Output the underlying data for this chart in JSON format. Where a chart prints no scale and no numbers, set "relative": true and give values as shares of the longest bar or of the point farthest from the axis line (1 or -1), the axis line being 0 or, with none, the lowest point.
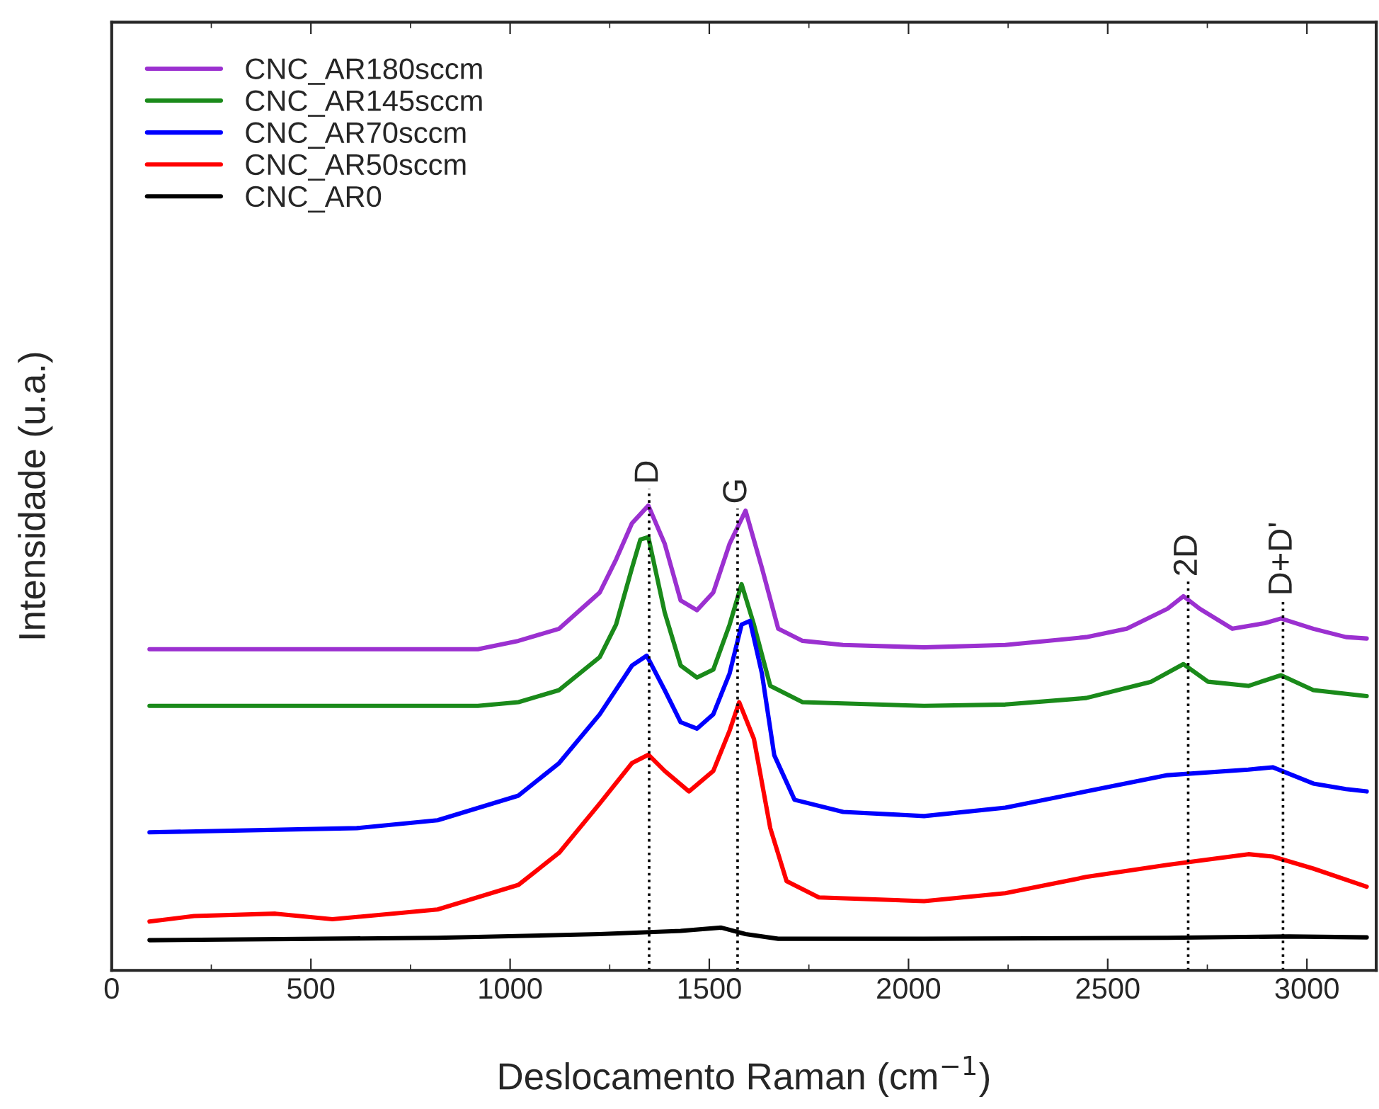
{
  "chart_data": {
    "type": "line",
    "relative": true,
    "xlabel": "Deslocamento Raman (cm$^{−1}$)",
    "ylabel": "Intensidade (u.a.)",
    "xlim": [
      0,
      3174
    ],
    "xticks": [
      0,
      500,
      1000,
      1500,
      2000,
      2500,
      3000
    ],
    "legend": "top left",
    "grid": false,
    "marker": "none",
    "line_style": "solid",
    "ref_lines": [
      {
        "axis": "x",
        "value": 1349,
        "label": "D",
        "line_style": "dotted",
        "color": "#000000"
      },
      {
        "axis": "x",
        "value": 1571,
        "label": "G",
        "line_style": "dotted",
        "color": "#000000"
      },
      {
        "axis": "x",
        "value": 2702,
        "label": "2D",
        "line_style": "dotted",
        "color": "#000000"
      },
      {
        "axis": "x",
        "value": 2940,
        "label": "D+D'",
        "line_style": "dotted",
        "color": "#000000"
      }
    ],
    "series": [
      {
        "name": "CNC_AR180sccm",
        "color": "#9b30d0",
        "x": [
          95,
          919,
          1021,
          1123,
          1225,
          1266,
          1306,
          1347,
          1388,
          1428,
          1469,
          1510,
          1551,
          1591,
          1632,
          1673,
          1734,
          1836,
          2039,
          2243,
          2446,
          2548,
          2650,
          2690,
          2731,
          2813,
          2894,
          2935,
          3016,
          3098,
          3150
        ],
        "values": [
          0.691,
          0.691,
          0.709,
          0.735,
          0.813,
          0.884,
          0.962,
          1.0,
          0.918,
          0.796,
          0.775,
          0.813,
          0.918,
          0.989,
          0.866,
          0.735,
          0.709,
          0.7,
          0.695,
          0.7,
          0.717,
          0.735,
          0.778,
          0.805,
          0.778,
          0.735,
          0.747,
          0.757,
          0.735,
          0.717,
          0.714
        ]
      },
      {
        "name": "CNC_AR145sccm",
        "color": "#1a8a1a",
        "x": [
          95,
          919,
          1021,
          1123,
          1225,
          1266,
          1306,
          1327,
          1347,
          1388,
          1428,
          1469,
          1510,
          1551,
          1581,
          1612,
          1653,
          1734,
          2039,
          2243,
          2446,
          2609,
          2690,
          2752,
          2853,
          2935,
          3016,
          3150
        ],
        "values": [
          0.569,
          0.569,
          0.577,
          0.603,
          0.674,
          0.744,
          0.866,
          0.927,
          0.932,
          0.77,
          0.656,
          0.63,
          0.647,
          0.744,
          0.831,
          0.744,
          0.612,
          0.577,
          0.569,
          0.572,
          0.586,
          0.621,
          0.659,
          0.621,
          0.612,
          0.635,
          0.603,
          0.59
        ]
      },
      {
        "name": "CNC_AR70sccm",
        "color": "#0000ff",
        "x": [
          95,
          615,
          818,
          1021,
          1123,
          1225,
          1306,
          1343,
          1388,
          1428,
          1469,
          1510,
          1551,
          1581,
          1602,
          1632,
          1663,
          1714,
          1836,
          2039,
          2243,
          2446,
          2650,
          2853,
          2914,
          3016,
          3098,
          3150
        ],
        "values": [
          0.297,
          0.306,
          0.323,
          0.376,
          0.446,
          0.551,
          0.656,
          0.677,
          0.603,
          0.534,
          0.52,
          0.551,
          0.639,
          0.744,
          0.752,
          0.639,
          0.463,
          0.367,
          0.341,
          0.332,
          0.35,
          0.385,
          0.42,
          0.432,
          0.437,
          0.402,
          0.39,
          0.385
        ]
      },
      {
        "name": "CNC_AR50sccm",
        "color": "#ff0000",
        "x": [
          95,
          207,
          411,
          554,
          818,
          1021,
          1123,
          1225,
          1306,
          1347,
          1388,
          1449,
          1510,
          1551,
          1575,
          1612,
          1653,
          1694,
          1775,
          2039,
          2243,
          2446,
          2650,
          2853,
          2914,
          3016,
          3150
        ],
        "values": [
          0.105,
          0.117,
          0.122,
          0.11,
          0.131,
          0.184,
          0.253,
          0.359,
          0.446,
          0.464,
          0.429,
          0.385,
          0.429,
          0.516,
          0.577,
          0.498,
          0.306,
          0.192,
          0.157,
          0.149,
          0.166,
          0.201,
          0.227,
          0.25,
          0.245,
          0.219,
          0.18
        ]
      },
      {
        "name": "CNC_AR0",
        "color": "#000000",
        "x": [
          95,
          818,
          1225,
          1428,
          1530,
          1591,
          1673,
          2039,
          2650,
          2955,
          3150
        ],
        "values": [
          0.065,
          0.07,
          0.078,
          0.085,
          0.092,
          0.078,
          0.068,
          0.068,
          0.07,
          0.073,
          0.071
        ]
      }
    ]
  }
}
